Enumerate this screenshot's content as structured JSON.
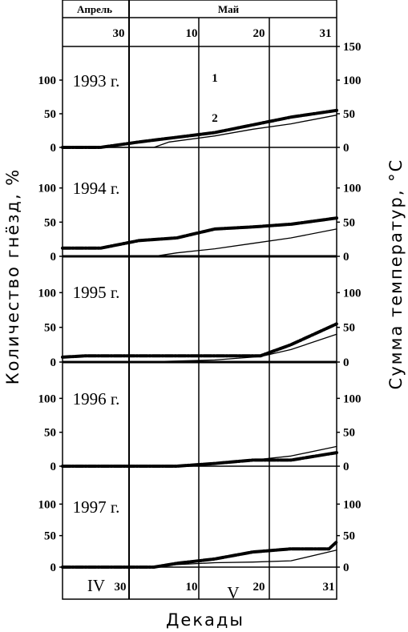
{
  "chart_data": {
    "type": "line",
    "y_left_label": "Количество гнёзд, %",
    "y_right_label": "Сумма температур, °C",
    "x_label": "Декады",
    "months_top": [
      "Апрель",
      "Май"
    ],
    "x_ticks_top": [
      "30",
      "10",
      "20",
      "31"
    ],
    "x_ticks_bottom": [
      "IV",
      "30",
      "10",
      "V",
      "20",
      "31"
    ],
    "x_domain": [
      0,
      36
    ],
    "ylim_left": [
      0,
      150
    ],
    "ylim_right": [
      0,
      150
    ],
    "left_ticks": [
      "0",
      "50",
      "100"
    ],
    "right_ticks": [
      "0",
      "50",
      "100",
      "150"
    ],
    "curve_labels": [
      "1",
      "2"
    ],
    "panels": [
      {
        "year": "1993 г.",
        "series": [
          {
            "x": [
              0,
              5,
              10,
              20,
              30,
              36
            ],
            "y": [
              0,
              0,
              8,
              22,
              45,
              55
            ],
            "style": "thick"
          },
          {
            "x": [
              0,
              12,
              14,
              20,
              25,
              30,
              36
            ],
            "y": [
              0,
              0,
              8,
              17,
              27,
              35,
              48
            ],
            "style": "thin"
          }
        ]
      },
      {
        "year": "1994 г.",
        "series": [
          {
            "x": [
              0,
              5,
              10,
              15,
              20,
              25,
              30,
              36
            ],
            "y": [
              12,
              12,
              23,
              27,
              40,
              43,
              47,
              56
            ],
            "style": "thick"
          },
          {
            "x": [
              0,
              12,
              15,
              20,
              25,
              30,
              36
            ],
            "y": [
              0,
              0,
              5,
              11,
              19,
              27,
              40
            ],
            "style": "thin"
          }
        ]
      },
      {
        "year": "1995 г.",
        "series": [
          {
            "x": [
              0,
              3,
              10,
              20,
              26,
              30,
              36
            ],
            "y": [
              7,
              9,
              9,
              9,
              9,
              25,
              55
            ],
            "style": "thick"
          },
          {
            "x": [
              0,
              10,
              20,
              26,
              30,
              36
            ],
            "y": [
              0,
              0,
              3,
              8,
              18,
              40
            ],
            "style": "thin"
          }
        ]
      },
      {
        "year": "1996 г.",
        "series": [
          {
            "x": [
              0,
              15,
              20,
              25,
              30,
              36
            ],
            "y": [
              0,
              0,
              4,
              9,
              9,
              20
            ],
            "style": "thick"
          },
          {
            "x": [
              0,
              15,
              20,
              25,
              30,
              36
            ],
            "y": [
              0,
              0,
              4,
              9,
              15,
              29
            ],
            "style": "thin"
          }
        ]
      },
      {
        "year": "1997 г.",
        "series": [
          {
            "x": [
              0,
              12,
              15,
              20,
              25,
              30,
              35,
              36
            ],
            "y": [
              0,
              0,
              6,
              13,
              24,
              29,
              29,
              40
            ],
            "style": "thick"
          },
          {
            "x": [
              0,
              12,
              15,
              20,
              25,
              30,
              36
            ],
            "y": [
              0,
              0,
              4,
              7,
              8,
              10,
              27
            ],
            "style": "thin"
          }
        ]
      }
    ]
  }
}
